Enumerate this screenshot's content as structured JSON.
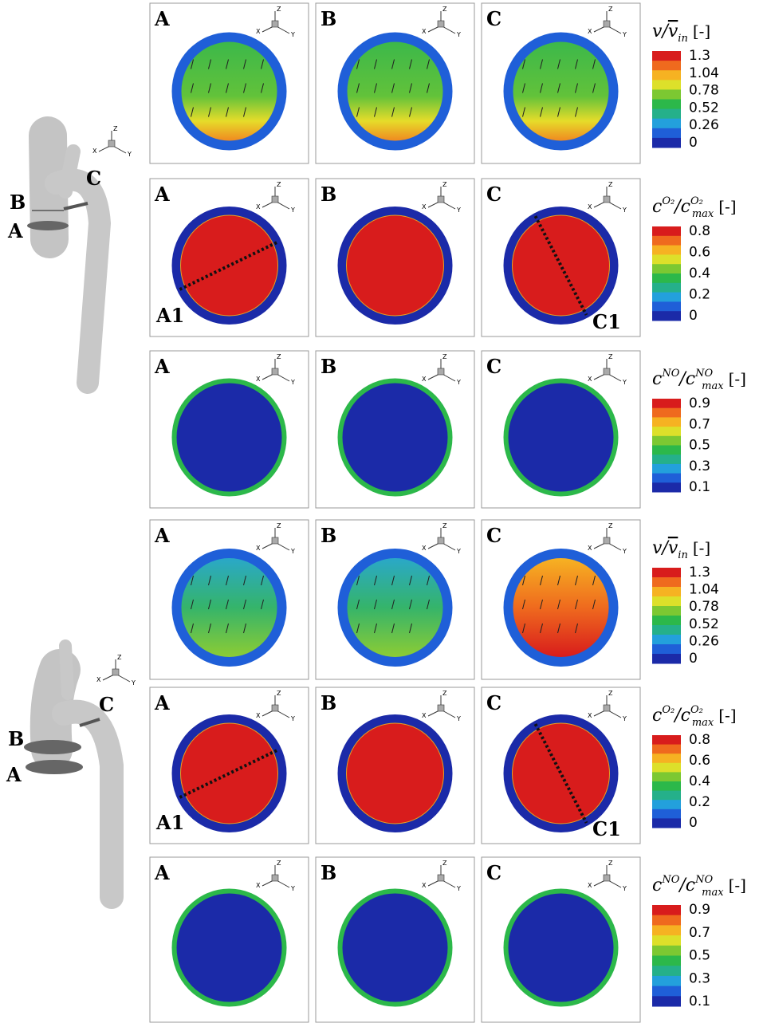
{
  "axis_letters": [
    "X",
    "Y",
    "Z"
  ],
  "colormap": [
    "#1b2aa8",
    "#1f5fd8",
    "#23a0dc",
    "#25b08a",
    "#2cb84a",
    "#7cc832",
    "#dde02a",
    "#f6b222",
    "#ef6a1e",
    "#d81c1c"
  ],
  "blocks": [
    {
      "model": {
        "labels": [
          "B",
          "A",
          "C"
        ]
      },
      "rows": [
        {
          "field": "velocity",
          "panels": [
            {
              "label": "A"
            },
            {
              "label": "B"
            },
            {
              "label": "C"
            }
          ],
          "legend": {
            "num": "v",
            "den": "v",
            "den_sub": "in",
            "overline": true,
            "unit": "[-]",
            "ticks": [
              "1.3",
              "1.04",
              "0.78",
              "0.52",
              "0.26",
              "0"
            ]
          }
        },
        {
          "field": "o2",
          "panels": [
            {
              "label": "A",
              "line_label": "A1"
            },
            {
              "label": "B"
            },
            {
              "label": "C",
              "line_label": "C1"
            }
          ],
          "legend": {
            "num": "c",
            "num_sup": "O₂",
            "den": "c",
            "den_sup": "O₂",
            "den_sub": "max",
            "unit": "[-]",
            "ticks": [
              "0.8",
              "0.6",
              "0.4",
              "0.2",
              "0"
            ]
          }
        },
        {
          "field": "no",
          "panels": [
            {
              "label": "A"
            },
            {
              "label": "B"
            },
            {
              "label": "C"
            }
          ],
          "legend": {
            "num": "c",
            "num_sup": "NO",
            "den": "c",
            "den_sup": "NO",
            "den_sub": "max",
            "unit": "[-]",
            "ticks": [
              "0.9",
              "0.7",
              "0.5",
              "0.3",
              "0.1"
            ]
          }
        }
      ]
    },
    {
      "model": {
        "labels": [
          "B",
          "A",
          "C"
        ]
      },
      "rows": [
        {
          "field": "velocity",
          "panels": [
            {
              "label": "A"
            },
            {
              "label": "B"
            },
            {
              "label": "C"
            }
          ],
          "legend": {
            "num": "v",
            "den": "v",
            "den_sub": "in",
            "overline": true,
            "unit": "[-]",
            "ticks": [
              "1.3",
              "1.04",
              "0.78",
              "0.52",
              "0.26",
              "0"
            ]
          }
        },
        {
          "field": "o2",
          "panels": [
            {
              "label": "A",
              "line_label": "A1"
            },
            {
              "label": "B"
            },
            {
              "label": "C",
              "line_label": "C1"
            }
          ],
          "legend": {
            "num": "c",
            "num_sup": "O₂",
            "den": "c",
            "den_sup": "O₂",
            "den_sub": "max",
            "unit": "[-]",
            "ticks": [
              "0.8",
              "0.6",
              "0.4",
              "0.2",
              "0"
            ]
          }
        },
        {
          "field": "no",
          "panels": [
            {
              "label": "A"
            },
            {
              "label": "B"
            },
            {
              "label": "C"
            }
          ],
          "legend": {
            "num": "c",
            "num_sup": "NO",
            "den": "c",
            "den_sup": "NO",
            "den_sub": "max",
            "unit": "[-]",
            "ticks": [
              "0.9",
              "0.7",
              "0.5",
              "0.3",
              "0.1"
            ]
          }
        }
      ]
    }
  ]
}
